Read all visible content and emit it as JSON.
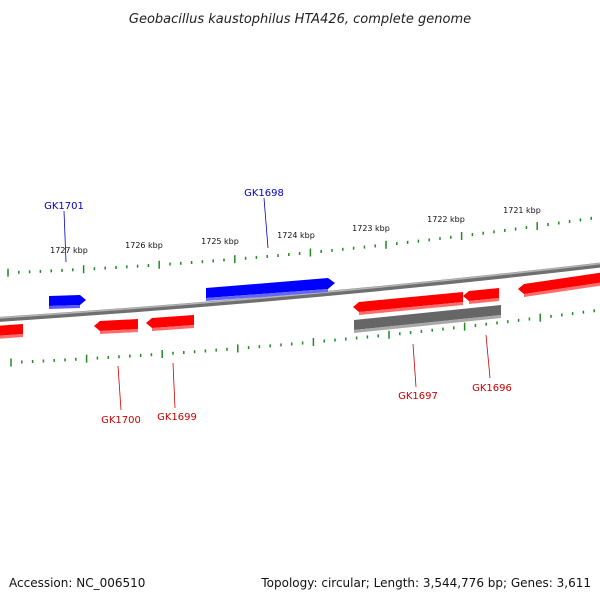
{
  "title": "Geobacillus kaustophilus HTA426, complete genome",
  "footer": {
    "accession": "Accession: NC_006510",
    "summary": "Topology: circular; Length: 3,544,776 bp; Genes: 3,611"
  },
  "colors": {
    "forward": "#0000ff",
    "reverse": "#ff0000",
    "other": "#666666",
    "backbone": "#888888",
    "ticks": "#228b22",
    "label_forward": "#0000cc",
    "label_reverse": "#cc0000"
  },
  "scale_marks": [
    "1727 kbp",
    "1726 kbp",
    "1725 kbp",
    "1724 kbp",
    "1723 kbp",
    "1722 kbp",
    "1721 kbp"
  ],
  "genes": [
    {
      "id": "GK1701",
      "strand": "forward"
    },
    {
      "id": "GK1698",
      "strand": "forward"
    },
    {
      "id": "GK1700",
      "strand": "reverse"
    },
    {
      "id": "GK1699",
      "strand": "reverse"
    },
    {
      "id": "GK1697",
      "strand": "reverse"
    },
    {
      "id": "GK1696",
      "strand": "reverse"
    }
  ]
}
